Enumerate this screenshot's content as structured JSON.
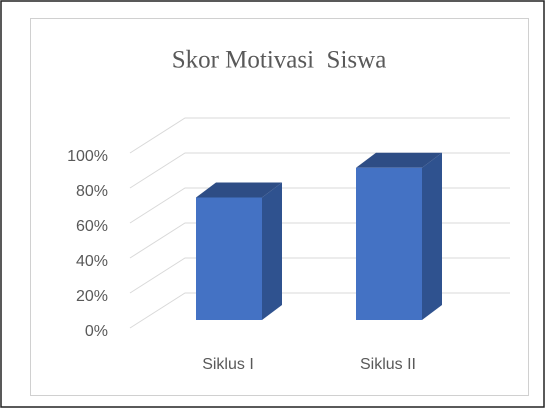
{
  "chart_data": {
    "type": "bar3d",
    "title": "Skor Motivasi  Siswa",
    "categories": [
      "Siklus I",
      "Siklus II"
    ],
    "values": [
      70,
      87
    ],
    "colors": {
      "front": "#4472c4",
      "side": "#2f528f",
      "top": "#2e4d85"
    },
    "ylim": [
      0,
      100
    ],
    "yticks": [
      {
        "value": 0,
        "label": "0%"
      },
      {
        "value": 20,
        "label": "20%"
      },
      {
        "value": 40,
        "label": "40%"
      },
      {
        "value": 60,
        "label": "60%"
      },
      {
        "value": 80,
        "label": "80%"
      },
      {
        "value": 100,
        "label": "100%"
      }
    ],
    "grid": true
  }
}
